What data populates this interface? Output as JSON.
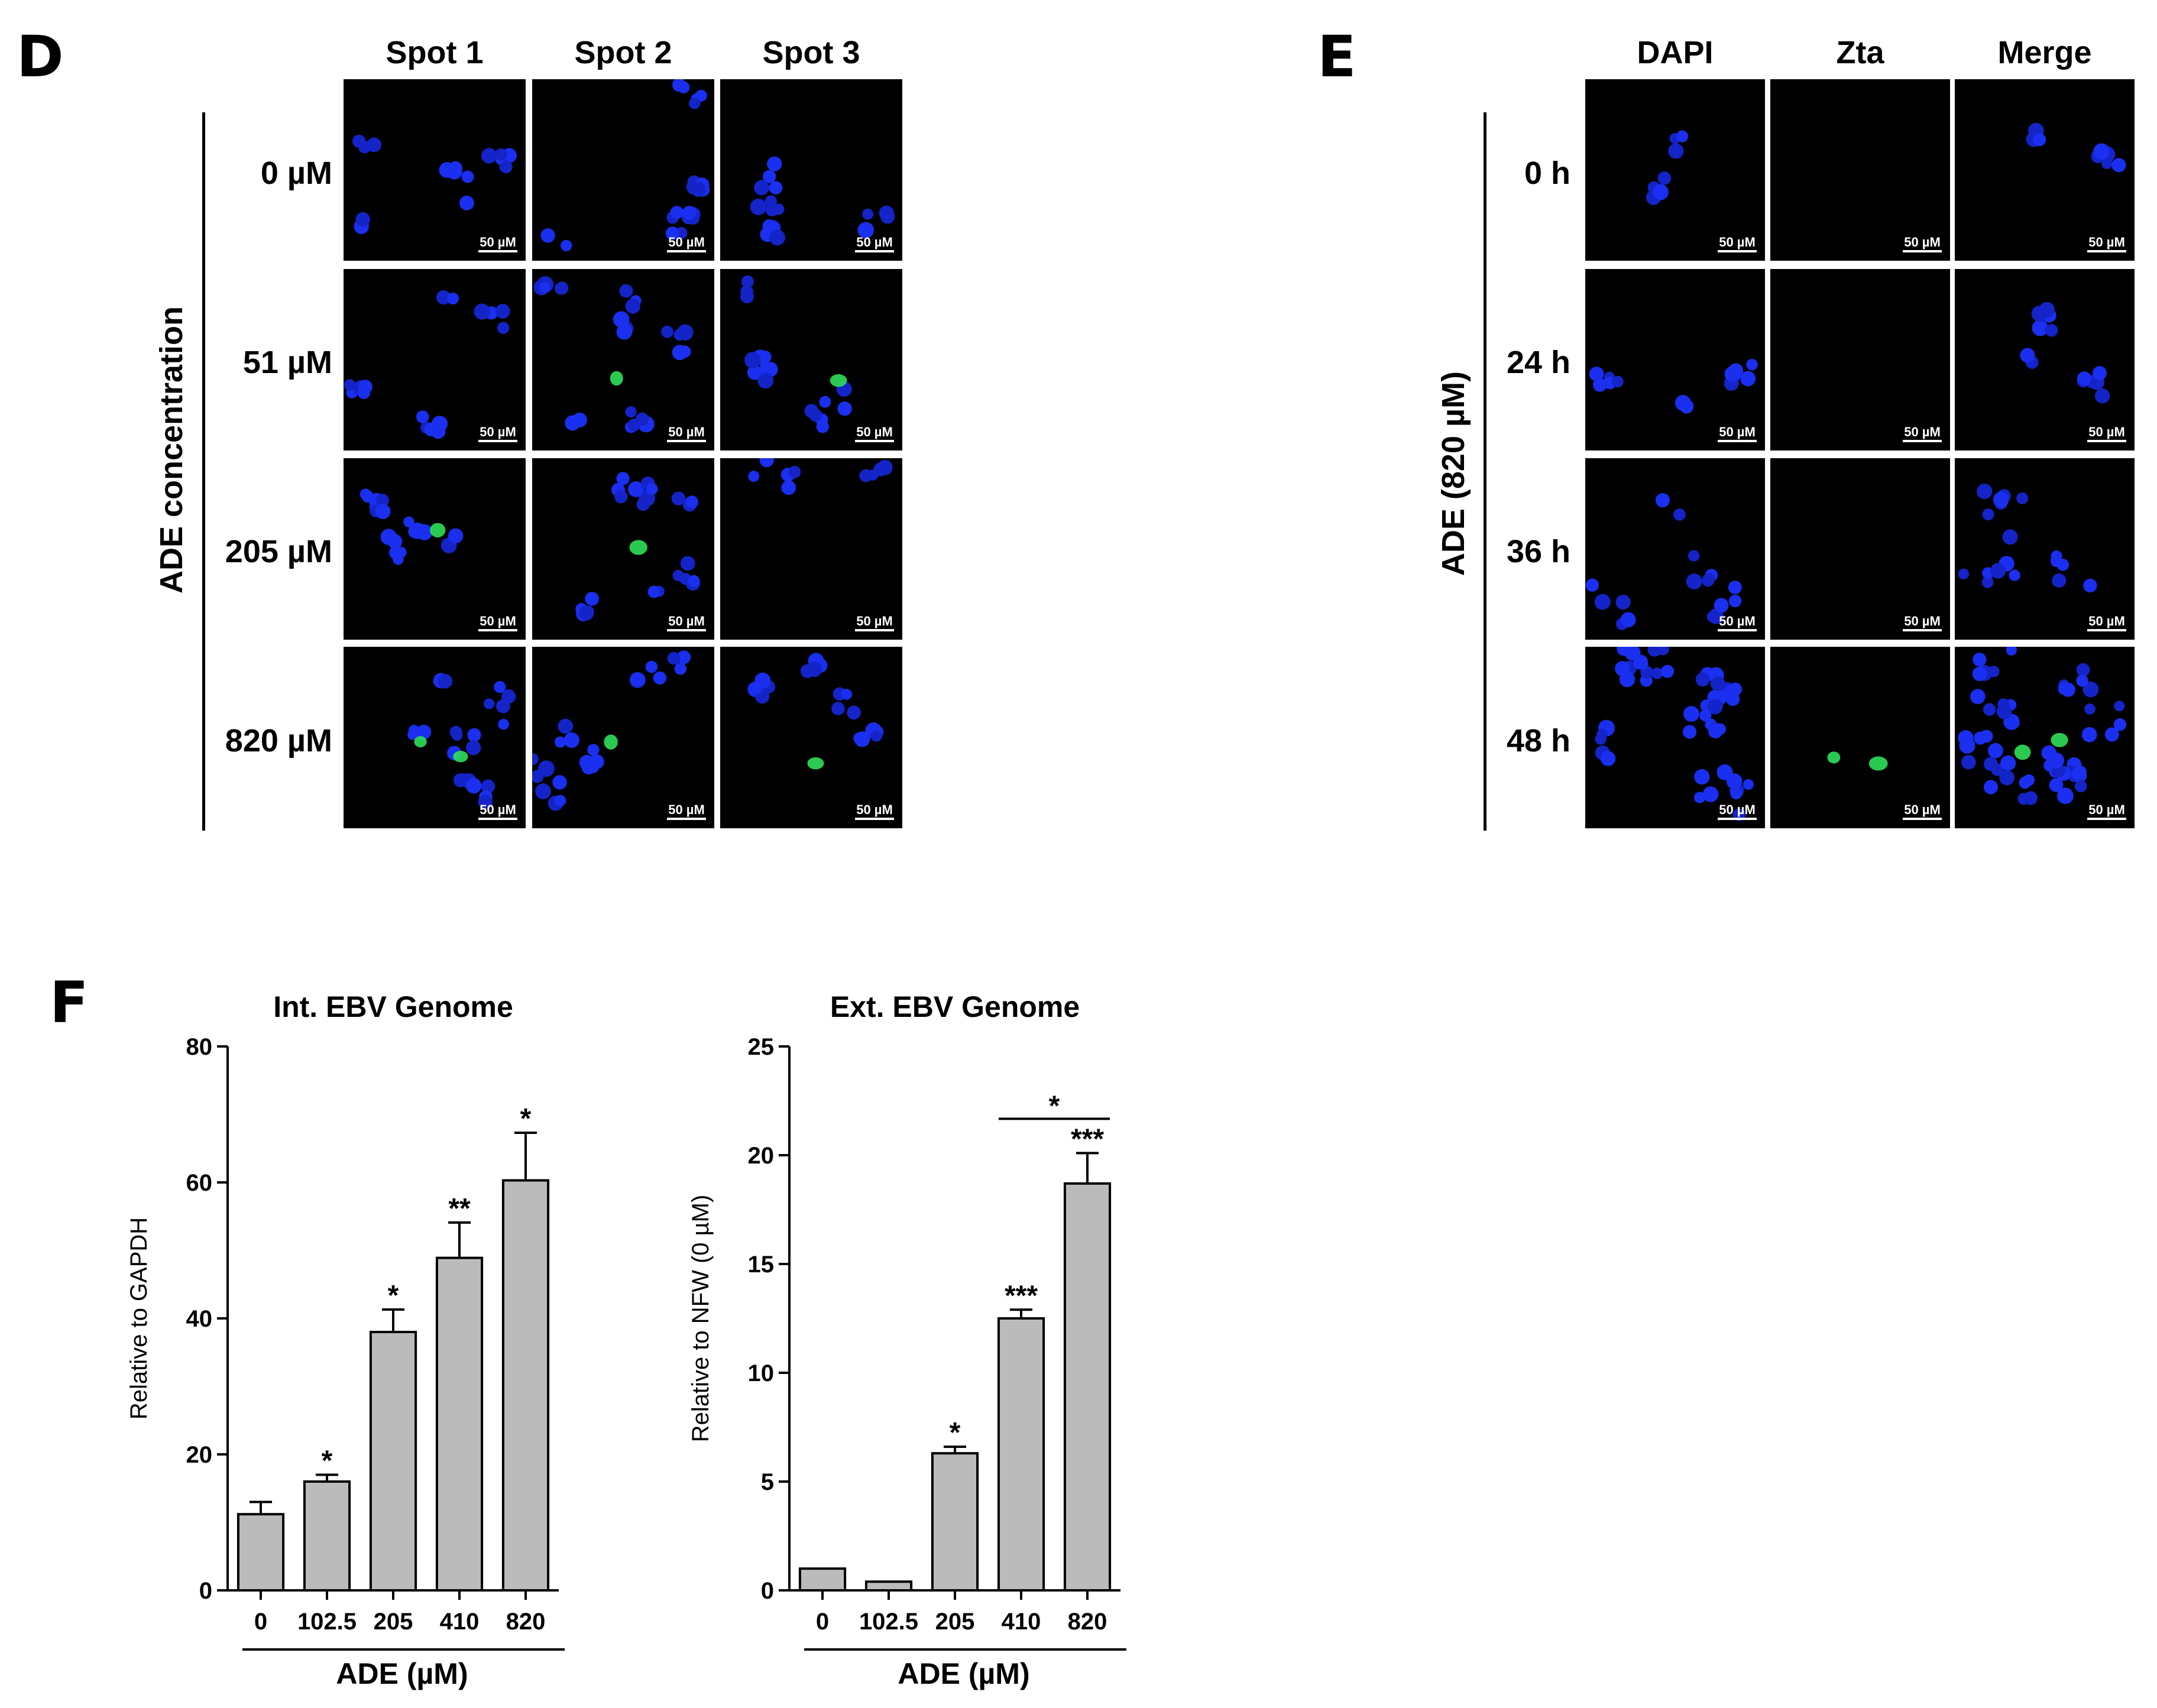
{
  "panel_d": {
    "letter": "D",
    "columns": [
      "Spot 1",
      "Spot 2",
      "Spot 3"
    ],
    "rows": [
      "0 µM",
      "51 µM",
      "205 µM",
      "820 µM"
    ],
    "side_label": "ADE concentration",
    "scale_bar": "50 µM"
  },
  "panel_e": {
    "letter": "E",
    "columns": [
      "DAPI",
      "Zta",
      "Merge"
    ],
    "rows": [
      "0 h",
      "24 h",
      "36 h",
      "48 h"
    ],
    "side_label": "ADE (820 µM)",
    "scale_bar": "50 µM"
  },
  "panel_f": {
    "letter": "F"
  },
  "chart_data": [
    {
      "type": "bar",
      "title": "Int. EBV Genome",
      "xlabel": "ADE (µM)",
      "ylabel": "Relative to GAPDH",
      "categories": [
        "0",
        "102.5",
        "205",
        "410",
        "820"
      ],
      "values": [
        11.2,
        16.0,
        38.0,
        48.9,
        60.3
      ],
      "errors": [
        1.8,
        1.0,
        3.3,
        5.2,
        7.0
      ],
      "significance": [
        "",
        "*",
        "*",
        "**",
        "*"
      ],
      "ylim": [
        0,
        80
      ],
      "yticks": [
        0,
        20,
        40,
        60,
        80
      ],
      "bar_color": "#bbbbbb",
      "grid": false
    },
    {
      "type": "bar",
      "title": "Ext. EBV Genome",
      "xlabel": "ADE (µM)",
      "ylabel": "Relative to NFW (0 µM)",
      "categories": [
        "0",
        "102.5",
        "205",
        "410",
        "820"
      ],
      "values": [
        1.0,
        0.4,
        6.3,
        12.5,
        18.7
      ],
      "errors": [
        0,
        0,
        0.3,
        0.4,
        1.4
      ],
      "significance": [
        "",
        "",
        "*",
        "***",
        "***"
      ],
      "bracket": {
        "from": "410",
        "to": "820",
        "label": "*"
      },
      "ylim": [
        0,
        25
      ],
      "yticks": [
        0,
        5,
        10,
        15,
        20,
        25
      ],
      "bar_color": "#bbbbbb",
      "grid": false
    }
  ]
}
